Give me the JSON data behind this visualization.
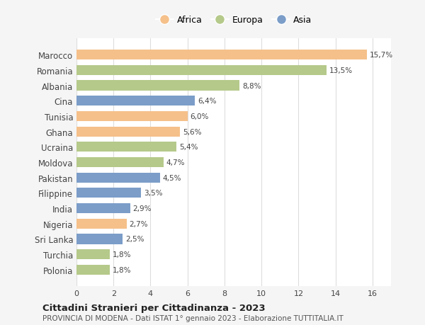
{
  "countries": [
    "Marocco",
    "Romania",
    "Albania",
    "Cina",
    "Tunisia",
    "Ghana",
    "Ucraina",
    "Moldova",
    "Pakistan",
    "Filippine",
    "India",
    "Nigeria",
    "Sri Lanka",
    "Turchia",
    "Polonia"
  ],
  "values": [
    15.7,
    13.5,
    8.8,
    6.4,
    6.0,
    5.6,
    5.4,
    4.7,
    4.5,
    3.5,
    2.9,
    2.7,
    2.5,
    1.8,
    1.8
  ],
  "labels": [
    "15,7%",
    "13,5%",
    "8,8%",
    "6,4%",
    "6,0%",
    "5,6%",
    "5,4%",
    "4,7%",
    "4,5%",
    "3,5%",
    "2,9%",
    "2,7%",
    "2,5%",
    "1,8%",
    "1,8%"
  ],
  "continents": [
    "Africa",
    "Europa",
    "Europa",
    "Asia",
    "Africa",
    "Africa",
    "Europa",
    "Europa",
    "Asia",
    "Asia",
    "Asia",
    "Africa",
    "Asia",
    "Europa",
    "Europa"
  ],
  "colors": {
    "Africa": "#F5C08A",
    "Europa": "#B5C98A",
    "Asia": "#7B9DC8"
  },
  "legend_labels": [
    "Africa",
    "Europa",
    "Asia"
  ],
  "title": "Cittadini Stranieri per Cittadinanza - 2023",
  "subtitle": "PROVINCIA DI MODENA - Dati ISTAT 1° gennaio 2023 - Elaborazione TUTTITALIA.IT",
  "xlim": [
    0,
    17
  ],
  "xticks": [
    0,
    2,
    4,
    6,
    8,
    10,
    12,
    14,
    16
  ],
  "bg_color": "#f5f5f5",
  "bar_bg_color": "#ffffff"
}
